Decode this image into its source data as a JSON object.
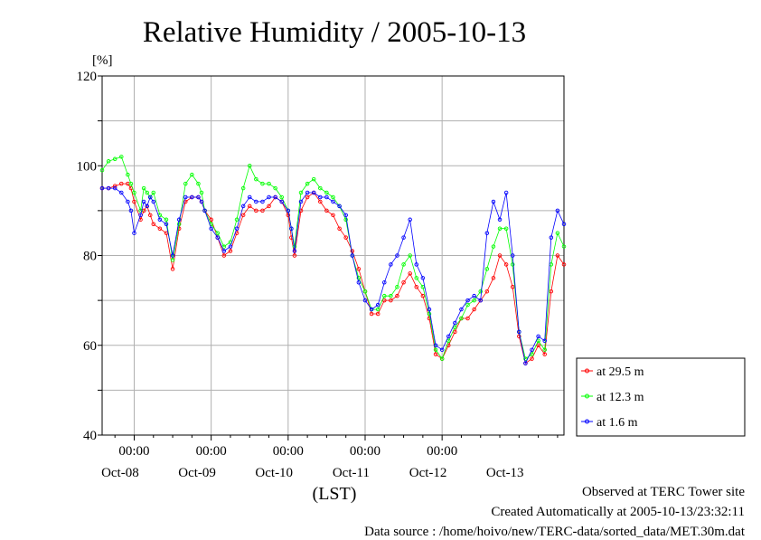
{
  "chart_data": {
    "type": "line",
    "title": "Relative Humidity / 2005-10-13",
    "ylabel": "[%]",
    "xlabel": "(LST)",
    "ylim": [
      40,
      120
    ],
    "yticks": [
      40,
      60,
      80,
      100,
      120
    ],
    "grid": true,
    "legend_position": "right",
    "x_tick_labels": [
      "00:00",
      "00:00",
      "00:00",
      "00:00",
      "00:00"
    ],
    "date_labels": [
      "Oct-08",
      "Oct-09",
      "Oct-10",
      "Oct-11",
      "Oct-12",
      "Oct-13"
    ],
    "x_unit": "hours since 2005-10-07 14:00 LST",
    "xlim": [
      0,
      144
    ],
    "x": [
      0,
      2,
      4,
      6,
      8,
      9,
      10,
      12,
      13,
      14,
      15,
      16,
      18,
      20,
      22,
      24,
      26,
      28,
      30,
      31,
      32,
      34,
      36,
      38,
      40,
      42,
      44,
      46,
      48,
      50,
      52,
      54,
      56,
      58,
      59,
      60,
      62,
      64,
      66,
      68,
      70,
      72,
      74,
      76,
      78,
      80,
      82,
      84,
      86,
      88,
      90,
      92,
      94,
      96,
      98,
      100,
      102,
      104,
      106,
      108,
      110,
      112,
      114,
      116,
      118,
      120,
      122,
      124,
      126,
      128,
      130,
      132,
      134,
      136,
      138,
      140,
      142,
      144
    ],
    "series": [
      {
        "name": "at 29.5 m",
        "color": "#ff0000",
        "values": [
          95,
          95,
          95.5,
          96,
          96,
          95,
          92,
          88,
          90,
          91,
          89,
          87,
          86,
          85,
          77,
          86,
          92,
          93,
          93,
          92,
          90,
          88,
          84,
          80,
          81,
          85,
          89,
          91,
          90,
          90,
          91,
          93,
          92,
          89,
          84,
          80,
          90,
          93,
          94,
          92,
          90,
          89,
          86,
          84,
          81,
          77,
          72,
          67,
          67,
          70,
          70,
          71,
          74,
          76,
          73,
          71,
          66,
          58,
          57,
          60,
          63,
          66,
          66,
          68,
          70,
          72,
          75,
          80,
          78,
          73,
          62,
          56,
          57,
          60,
          58,
          72,
          80,
          78
        ]
      },
      {
        "name": "at 12.3 m",
        "color": "#00ff00",
        "values": [
          99,
          101,
          101.5,
          102,
          98,
          96,
          94,
          90,
          95,
          94,
          93,
          94,
          89,
          88,
          79,
          87,
          96,
          98,
          96,
          94,
          90,
          87,
          85,
          82,
          83,
          88,
          95,
          100,
          97,
          96,
          96,
          95,
          93,
          90,
          86,
          82,
          94,
          96,
          97,
          95,
          94,
          93,
          91,
          88,
          80,
          75,
          72,
          68,
          68,
          71,
          71,
          73,
          78,
          80,
          75,
          73,
          67,
          59,
          57,
          61,
          64,
          66,
          69,
          70,
          72,
          77,
          82,
          86,
          86,
          78,
          63,
          57,
          58,
          61,
          59,
          78,
          85,
          82
        ]
      },
      {
        "name": "at 1.6 m",
        "color": "#0000ff",
        "values": [
          95,
          95,
          95,
          94,
          92,
          90,
          85,
          89,
          92,
          91,
          93,
          92,
          88,
          87,
          80,
          88,
          93,
          93,
          93,
          92,
          90,
          86,
          84,
          81,
          82,
          86,
          91,
          93,
          92,
          92,
          93,
          93,
          92,
          90,
          86,
          81,
          92,
          94,
          94,
          93,
          93,
          92,
          91,
          89,
          80,
          74,
          70,
          68,
          69,
          74,
          78,
          80,
          84,
          88,
          78,
          75,
          68,
          60,
          59,
          62,
          65,
          68,
          70,
          71,
          70,
          85,
          92,
          88,
          94,
          80,
          63,
          56,
          59,
          62,
          61,
          84,
          90,
          87
        ]
      }
    ]
  },
  "footer": {
    "line1": "Observed at TERC Tower site",
    "line2": "Created Automatically at 2005-10-13/23:32:11",
    "line3": "Data source : /home/hoivo/new/TERC-data/sorted_data/MET.30m.dat"
  }
}
